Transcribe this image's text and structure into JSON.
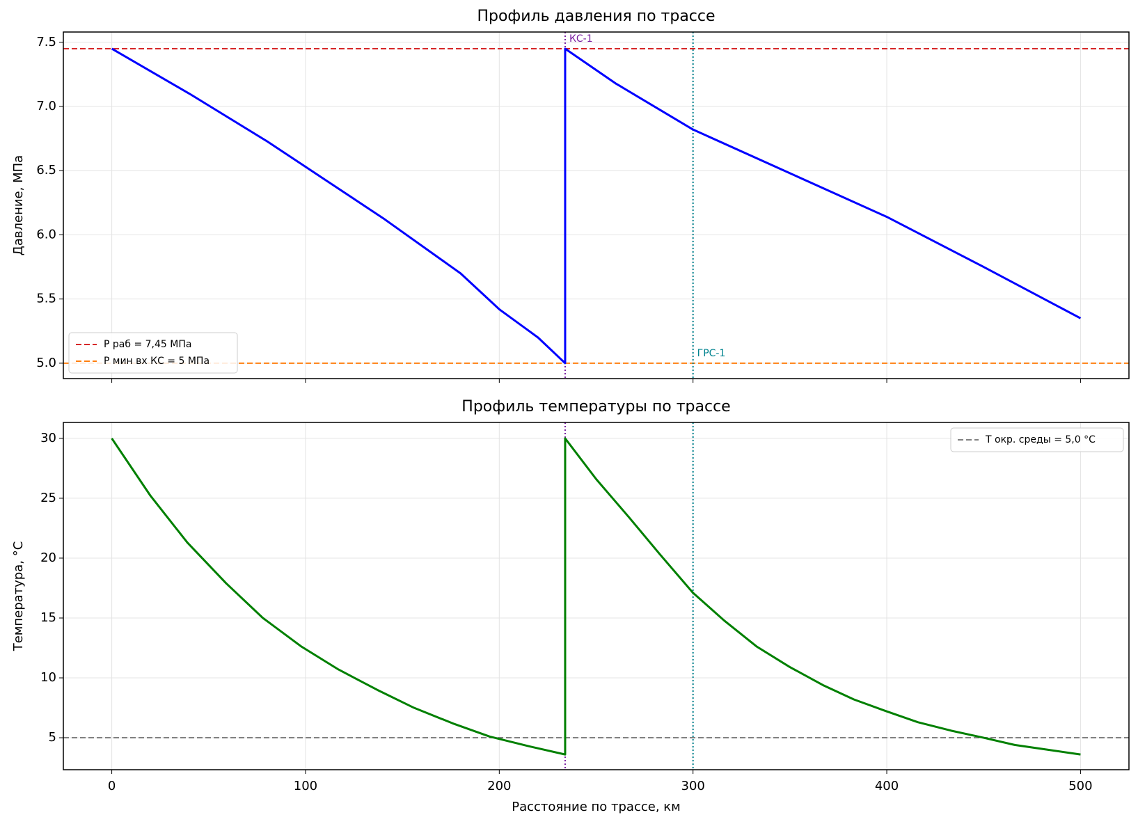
{
  "chart_data": [
    {
      "type": "line",
      "title": "Профиль давления по трассе",
      "ylabel": "Давление, МПа",
      "x": [
        0,
        40,
        80,
        100,
        140,
        180,
        200,
        220,
        234,
        234,
        260,
        300,
        350,
        400,
        450,
        500
      ],
      "series": [
        {
          "color": "#0000ff",
          "values": [
            7.45,
            7.1,
            6.73,
            6.53,
            6.13,
            5.7,
            5.42,
            5.2,
            5.0,
            7.45,
            7.18,
            6.82,
            6.48,
            6.14,
            5.75,
            5.35
          ]
        }
      ],
      "hlines": [
        {
          "value": 7.45,
          "label": "P раб = 7,45 МПа",
          "color": "#d62728"
        },
        {
          "value": 5.0,
          "label": "P мин вх КС = 5 МПа",
          "color": "#ff7f0e"
        }
      ],
      "vlines": [
        {
          "value": 234,
          "label": "КС-1",
          "color": "#7b1fa2"
        },
        {
          "value": 300,
          "label": "ГРС-1",
          "color": "#00838f"
        }
      ],
      "xlim": [
        -25,
        525
      ],
      "ylim": [
        4.88,
        7.58
      ],
      "xticks": [
        0,
        100,
        200,
        300,
        400,
        500
      ],
      "yticks": [
        {
          "value": 5,
          "label": "5.0"
        },
        5.5,
        {
          "value": 6,
          "label": "6.0"
        },
        6.5,
        {
          "value": 7,
          "label": "7.0"
        },
        7.5
      ],
      "grid": true,
      "legend": "lower left"
    },
    {
      "type": "line",
      "title": "Профиль температуры по трассе",
      "ylabel": "Температура, °C",
      "xlabel": "Расстояние по трассе, км",
      "x": [
        0,
        20,
        39,
        59,
        78,
        98,
        117,
        137,
        156,
        176,
        195,
        215,
        234,
        234,
        250,
        267,
        283,
        300,
        316,
        333,
        350,
        367,
        383,
        400,
        416,
        433,
        450,
        466,
        483,
        500
      ],
      "series": [
        {
          "color": "#008000",
          "values": [
            30,
            25.2,
            21.3,
            17.9,
            15.0,
            12.6,
            10.7,
            9.0,
            7.5,
            6.2,
            5.1,
            4.3,
            3.6,
            30,
            26.6,
            23.4,
            20.3,
            17.1,
            14.8,
            12.6,
            10.9,
            9.4,
            8.2,
            7.2,
            6.3,
            5.6,
            5.0,
            4.4,
            4.0,
            3.6
          ]
        }
      ],
      "hlines": [
        {
          "value": 5.0,
          "label": "T окр. среды = 5,0 °C",
          "color": "#808080"
        }
      ],
      "vlines": [
        {
          "value": 234,
          "color": "#7b1fa2"
        },
        {
          "value": 300,
          "color": "#00838f"
        }
      ],
      "xlim": [
        -25,
        525
      ],
      "ylim": [
        2.33,
        31.33
      ],
      "xticks": [
        0,
        100,
        200,
        300,
        400,
        500
      ],
      "yticks": [
        5,
        10,
        15,
        20,
        25,
        30
      ],
      "grid": true,
      "legend": "upper right"
    }
  ]
}
